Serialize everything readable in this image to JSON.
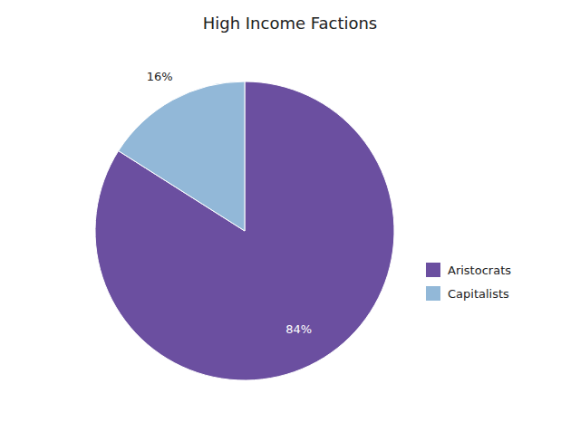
{
  "chart_data": {
    "type": "pie",
    "title": "High Income Factions",
    "categories": [
      "Aristocrats",
      "Capitalists"
    ],
    "values": [
      84,
      16
    ],
    "value_labels": [
      "84%",
      "16%"
    ],
    "colors": [
      "#6b4fa0",
      "#92b8d8"
    ],
    "data_labels": true,
    "legend": "right"
  }
}
